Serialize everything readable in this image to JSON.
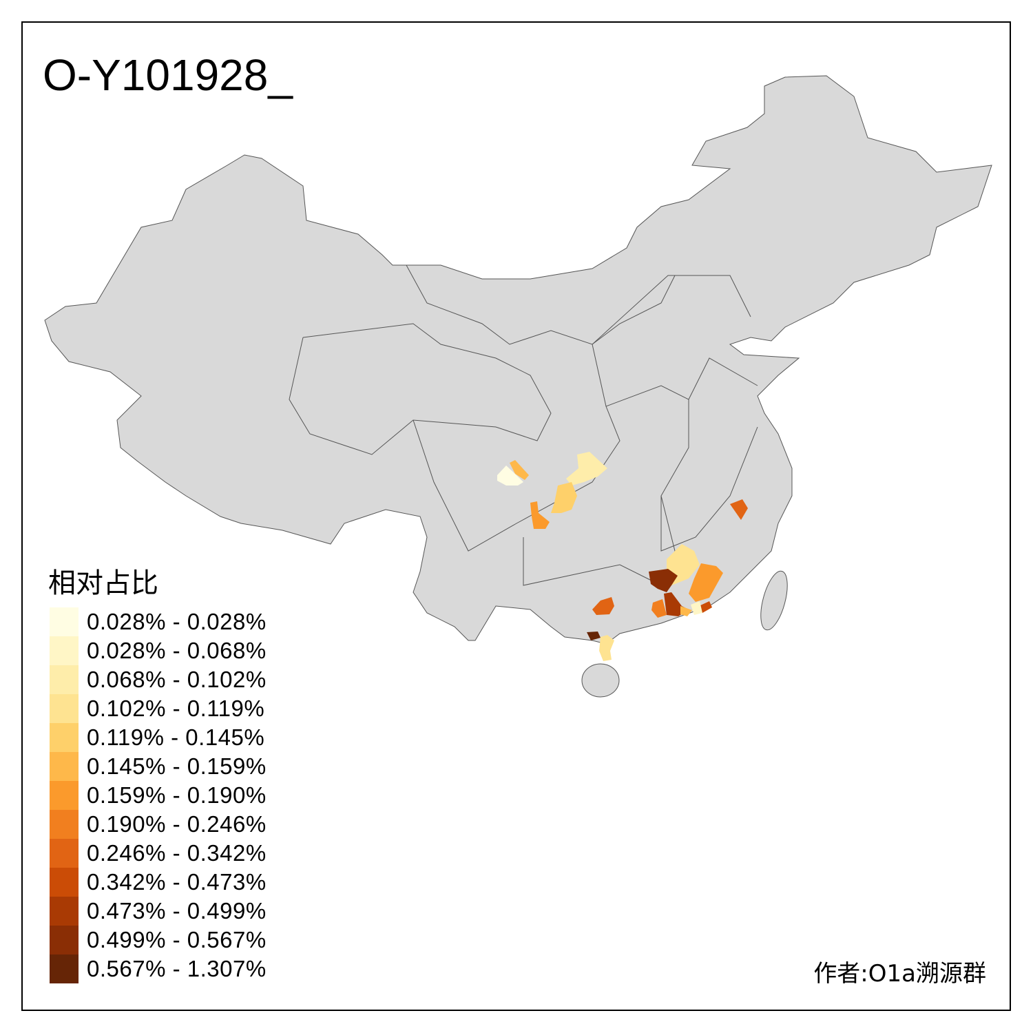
{
  "title": "O-Y101928_",
  "legend": {
    "title": "相对占比",
    "classes": [
      {
        "label": "0.028% - 0.028%",
        "color": "#FFFDE3"
      },
      {
        "label": "0.028% - 0.068%",
        "color": "#FFF6C6"
      },
      {
        "label": "0.068% - 0.102%",
        "color": "#FEEDAA"
      },
      {
        "label": "0.102% - 0.119%",
        "color": "#FEE391"
      },
      {
        "label": "0.119% - 0.145%",
        "color": "#FED06A"
      },
      {
        "label": "0.145% - 0.159%",
        "color": "#FEB84A"
      },
      {
        "label": "0.159% - 0.190%",
        "color": "#FB9A2C"
      },
      {
        "label": "0.190% - 0.246%",
        "color": "#F17F1F"
      },
      {
        "label": "0.246% - 0.342%",
        "color": "#E16414"
      },
      {
        "label": "0.342% - 0.473%",
        "color": "#CB4C06"
      },
      {
        "label": "0.473% - 0.499%",
        "color": "#A93A04"
      },
      {
        "label": "0.499% - 0.567%",
        "color": "#8A2E05"
      },
      {
        "label": "0.567% - 1.307%",
        "color": "#662506"
      }
    ]
  },
  "map": {
    "base_color": "#D9D9D9",
    "border_color": "#555555"
  },
  "author": "作者:O1a溯源群"
}
